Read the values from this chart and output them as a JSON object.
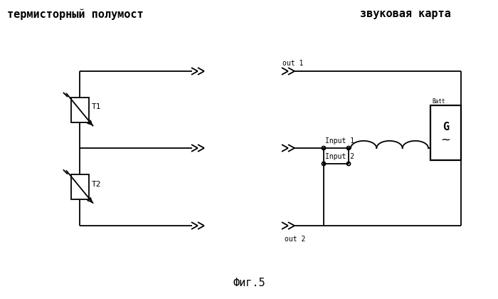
{
  "title_left": "термисторный полумост",
  "title_right": "звуковая карта",
  "caption": "Фиг.5",
  "bg_color": "#ffffff",
  "line_color": "#000000",
  "label_T1": "T1",
  "label_T2": "T2",
  "label_out1": "out 1",
  "label_out2": "out 2",
  "label_input1": "Input 1",
  "label_input2": "Input 2",
  "label_G": "G",
  "label_Batt": "Batt"
}
